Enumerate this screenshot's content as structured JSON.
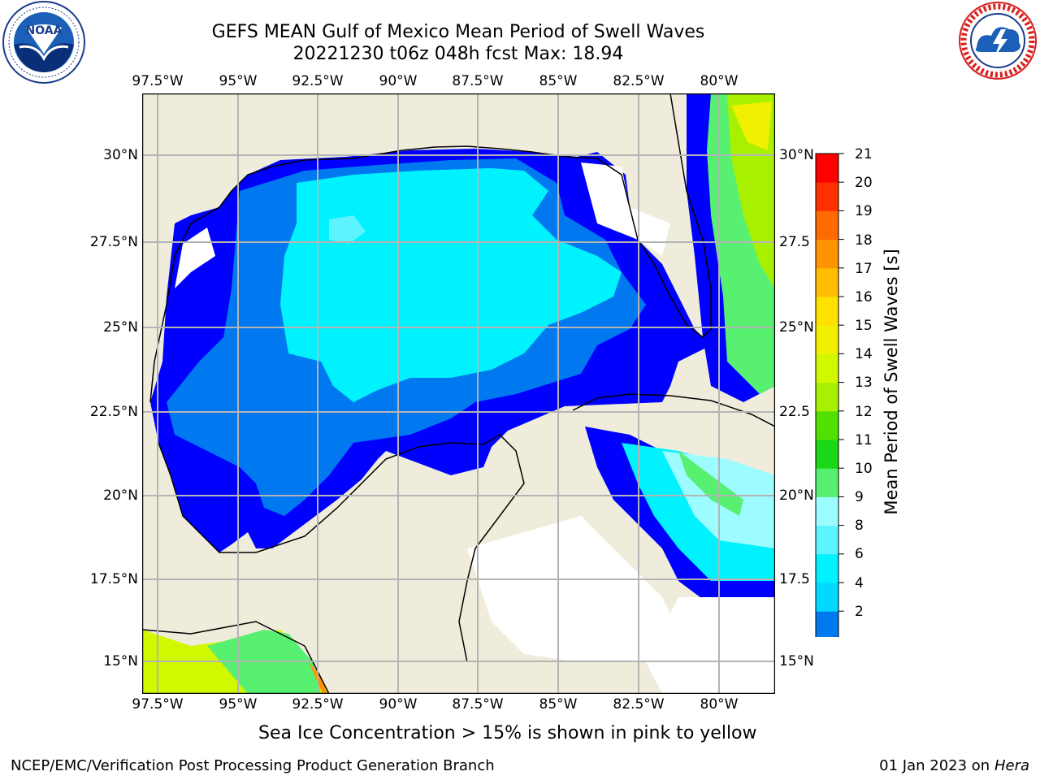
{
  "title": {
    "line1": "GEFS MEAN Gulf of Mexico Mean Period of Swell Waves",
    "line2": "20221230 t06z 048h fcst   Max: 18.94"
  },
  "map": {
    "longitude_labels": [
      "97.5°W",
      "95°W",
      "92.5°W",
      "90°W",
      "87.5°W",
      "85°W",
      "82.5°W",
      "80°W"
    ],
    "latitude_labels_left": [
      "30°N",
      "27.5°N",
      "25°N",
      "22.5°N",
      "20°N",
      "17.5°N",
      "15°N"
    ],
    "latitude_labels_right": [
      "30°N",
      "27.5",
      "25°N",
      "22.5",
      "20°N",
      "17.5",
      "15°N"
    ],
    "land_color": "#efecdc",
    "grid_color": "#b4b4b4"
  },
  "colorbar": {
    "label": "Mean Period of Swell Waves [s]",
    "ticks": [
      "21",
      "20",
      "19",
      "18",
      "17",
      "16",
      "15",
      "14",
      "13",
      "12",
      "11",
      "10",
      "9",
      "8",
      "6",
      "4",
      "2"
    ],
    "colors_bottom_to_top": [
      "#0078f0",
      "#00d8ff",
      "#00f2ff",
      "#5ef4ff",
      "#9cfcff",
      "#58f070",
      "#18d818",
      "#52e000",
      "#a8f000",
      "#d2f800",
      "#f0f000",
      "#ffe100",
      "#ffbd00",
      "#ff9300",
      "#ff6b00",
      "#ff3000",
      "#ff0000"
    ],
    "extend_min_color": "#0000ff"
  },
  "note": "Sea Ice Concentration > 15% is shown in pink to yellow",
  "footer": {
    "left": "NCEP/EMC/Verification Post Processing Product Generation Branch",
    "date": "01 Jan 2023 on ",
    "machine": "Hera"
  },
  "logos": {
    "left": "noaa-logo",
    "right": "national-weather-service-logo"
  }
}
